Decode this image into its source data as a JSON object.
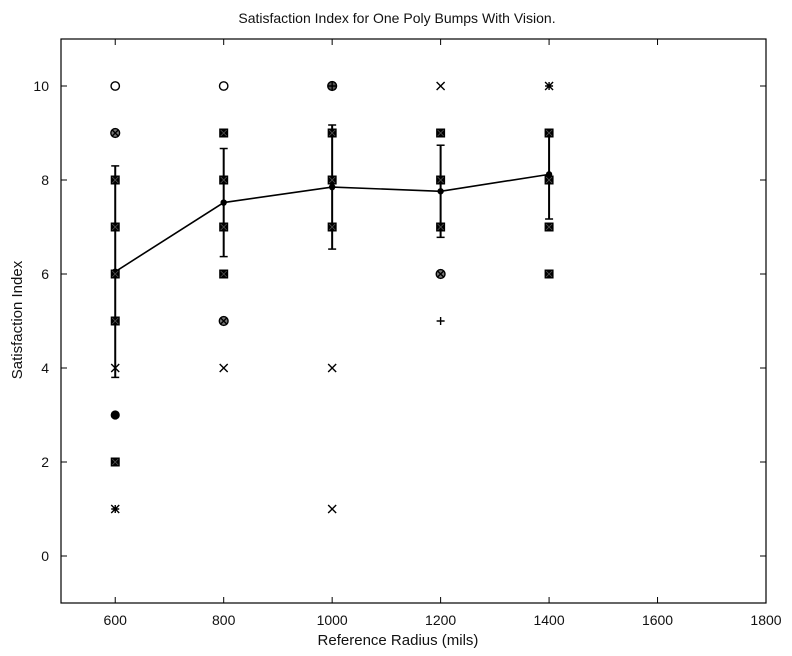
{
  "chart_data": {
    "type": "scatter",
    "title": "Satisfaction Index for One Poly Bumps With Vision.",
    "xlabel": "Reference Radius (mils)",
    "ylabel": "Satisfaction Index",
    "xlim": [
      500,
      1800
    ],
    "ylim": [
      -1,
      11
    ],
    "xticks": [
      "600",
      "800",
      "1000",
      "1200",
      "1400",
      "1600",
      "1800"
    ],
    "yticks": [
      "0",
      "2",
      "4",
      "6",
      "8",
      "10"
    ],
    "grid": false,
    "markers": [
      {
        "x": 600,
        "y": 10,
        "symbol": "circle"
      },
      {
        "x": 600,
        "y": 9,
        "symbol": "circle-x"
      },
      {
        "x": 600,
        "y": 8,
        "symbol": "square"
      },
      {
        "x": 600,
        "y": 7,
        "symbol": "square"
      },
      {
        "x": 600,
        "y": 6,
        "symbol": "square"
      },
      {
        "x": 600,
        "y": 5,
        "symbol": "square"
      },
      {
        "x": 600,
        "y": 4,
        "symbol": "x"
      },
      {
        "x": 600,
        "y": 3,
        "symbol": "filled-circle"
      },
      {
        "x": 600,
        "y": 2,
        "symbol": "square"
      },
      {
        "x": 600,
        "y": 1,
        "symbol": "star"
      },
      {
        "x": 800,
        "y": 10,
        "symbol": "circle"
      },
      {
        "x": 800,
        "y": 9,
        "symbol": "square"
      },
      {
        "x": 800,
        "y": 8,
        "symbol": "square"
      },
      {
        "x": 800,
        "y": 7,
        "symbol": "square"
      },
      {
        "x": 800,
        "y": 6,
        "symbol": "square"
      },
      {
        "x": 800,
        "y": 5,
        "symbol": "circle-x"
      },
      {
        "x": 800,
        "y": 4,
        "symbol": "x"
      },
      {
        "x": 1000,
        "y": 10,
        "symbol": "circle-plus"
      },
      {
        "x": 1000,
        "y": 9,
        "symbol": "square"
      },
      {
        "x": 1000,
        "y": 8,
        "symbol": "square"
      },
      {
        "x": 1000,
        "y": 7,
        "symbol": "square"
      },
      {
        "x": 1000,
        "y": 4,
        "symbol": "x"
      },
      {
        "x": 1000,
        "y": 1,
        "symbol": "x"
      },
      {
        "x": 1200,
        "y": 10,
        "symbol": "x"
      },
      {
        "x": 1200,
        "y": 9,
        "symbol": "square"
      },
      {
        "x": 1200,
        "y": 8,
        "symbol": "square"
      },
      {
        "x": 1200,
        "y": 7,
        "symbol": "square"
      },
      {
        "x": 1200,
        "y": 6,
        "symbol": "circle-x"
      },
      {
        "x": 1200,
        "y": 5,
        "symbol": "plus"
      },
      {
        "x": 1400,
        "y": 10,
        "symbol": "star"
      },
      {
        "x": 1400,
        "y": 9,
        "symbol": "square"
      },
      {
        "x": 1400,
        "y": 8,
        "symbol": "square"
      },
      {
        "x": 1400,
        "y": 7,
        "symbol": "square"
      },
      {
        "x": 1400,
        "y": 6,
        "symbol": "square"
      }
    ],
    "mean_series": {
      "x": [
        600,
        800,
        1000,
        1200,
        1400
      ],
      "y": [
        6.05,
        7.52,
        7.85,
        7.76,
        8.12
      ],
      "err": [
        2.25,
        1.15,
        1.32,
        0.98,
        0.95
      ]
    }
  }
}
